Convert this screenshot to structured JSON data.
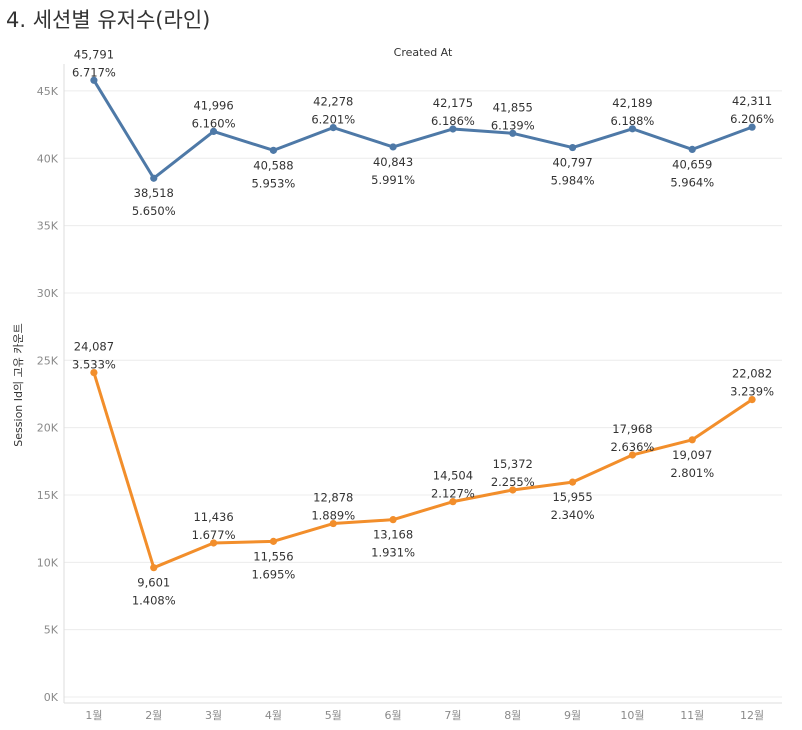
{
  "page_title": "4. 세션별 유저수(라인)",
  "colors": {
    "series1": "#4e79a7",
    "series2": "#f28e2b",
    "grid": "#ececec",
    "axis": "#dddddd"
  },
  "chart_data": {
    "type": "line",
    "title": "4. 세션별 유저수(라인)",
    "xlabel": "Created At",
    "ylabel": "Session Id의 고유 카운트",
    "categories": [
      "1월",
      "2월",
      "3월",
      "4월",
      "5월",
      "6월",
      "7월",
      "8월",
      "9월",
      "10월",
      "11월",
      "12월"
    ],
    "ylim": [
      0,
      47000
    ],
    "yticks": [
      0,
      5000,
      10000,
      15000,
      20000,
      25000,
      30000,
      35000,
      40000,
      45000
    ],
    "ytick_labels": [
      "0K",
      "5K",
      "10K",
      "15K",
      "20K",
      "25K",
      "30K",
      "35K",
      "40K",
      "45K"
    ],
    "grid": true,
    "series": [
      {
        "values": [
          45791,
          38518,
          41996,
          40588,
          42278,
          40843,
          42175,
          41855,
          40797,
          42189,
          40659,
          42311
        ],
        "value_labels": [
          "45,791",
          "38,518",
          "41,996",
          "40,588",
          "42,278",
          "40,843",
          "42,175",
          "41,855",
          "40,797",
          "42,189",
          "40,659",
          "42,311"
        ],
        "pct_labels": [
          "6.717%",
          "5.650%",
          "6.160%",
          "5.953%",
          "6.201%",
          "5.991%",
          "6.186%",
          "6.139%",
          "5.984%",
          "6.188%",
          "5.964%",
          "6.206%"
        ],
        "label_pos": [
          "above",
          "below",
          "above",
          "below",
          "above",
          "below",
          "above",
          "above",
          "below",
          "above",
          "below",
          "above"
        ]
      },
      {
        "values": [
          24087,
          9601,
          11436,
          11556,
          12878,
          13168,
          14504,
          15372,
          15955,
          17968,
          19097,
          22082
        ],
        "value_labels": [
          "24,087",
          "9,601",
          "11,436",
          "11,556",
          "12,878",
          "13,168",
          "14,504",
          "15,372",
          "15,955",
          "17,968",
          "19,097",
          "22,082"
        ],
        "pct_labels": [
          "3.533%",
          "1.408%",
          "1.677%",
          "1.695%",
          "1.889%",
          "1.931%",
          "2.127%",
          "2.255%",
          "2.340%",
          "2.636%",
          "2.801%",
          "3.239%"
        ],
        "label_pos": [
          "above",
          "below",
          "above",
          "below",
          "above",
          "below",
          "above",
          "above",
          "below",
          "above",
          "below",
          "above"
        ]
      }
    ]
  }
}
